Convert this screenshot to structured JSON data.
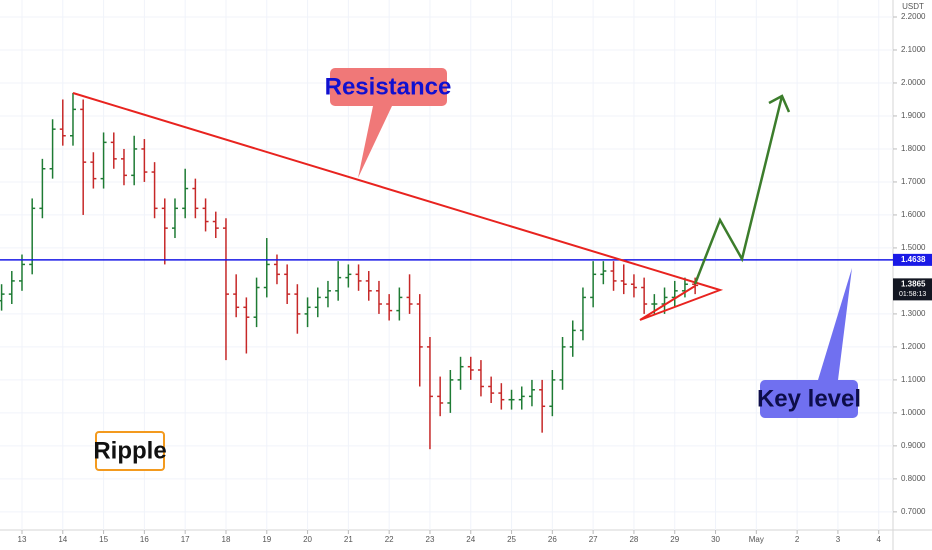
{
  "chart_data": {
    "type": "ohlc",
    "y_axis_label": "USDT",
    "x": [
      -0.5,
      -0.25,
      0,
      0.25,
      0.5,
      0.75,
      1,
      1.25,
      1.5,
      1.75,
      2,
      2.25,
      2.5,
      2.75,
      3,
      3.25,
      3.5,
      3.75,
      4,
      4.25,
      4.5,
      4.75,
      5,
      5.25,
      5.5,
      5.75,
      6,
      6.25,
      6.5,
      6.75,
      7,
      7.25,
      7.5,
      7.75,
      8,
      8.25,
      8.5,
      8.75,
      9,
      9.25,
      9.5,
      9.75,
      10,
      10.25,
      10.5,
      10.75,
      11,
      11.25,
      11.5,
      11.75,
      12,
      12.25,
      12.5,
      12.75,
      13,
      13.25,
      13.5,
      13.75,
      14,
      14.25,
      14.5,
      14.75,
      15,
      15.25,
      15.5,
      15.75,
      16,
      16.25,
      16.5
    ],
    "open": [
      1.34,
      1.36,
      1.4,
      1.45,
      1.62,
      1.74,
      1.86,
      1.84,
      1.92,
      1.76,
      1.71,
      1.82,
      1.77,
      1.72,
      1.8,
      1.73,
      1.62,
      1.56,
      1.62,
      1.68,
      1.62,
      1.58,
      1.56,
      1.36,
      1.32,
      1.29,
      1.38,
      1.45,
      1.42,
      1.36,
      1.3,
      1.32,
      1.35,
      1.37,
      1.41,
      1.42,
      1.4,
      1.37,
      1.33,
      1.31,
      1.35,
      1.33,
      1.2,
      1.05,
      1.03,
      1.1,
      1.14,
      1.13,
      1.08,
      1.06,
      1.04,
      1.04,
      1.05,
      1.07,
      1.02,
      1.1,
      1.2,
      1.25,
      1.35,
      1.42,
      1.43,
      1.4,
      1.39,
      1.38,
      1.33,
      1.33,
      1.35,
      1.37,
      1.39
    ],
    "high": [
      1.39,
      1.43,
      1.48,
      1.65,
      1.77,
      1.89,
      1.95,
      1.97,
      1.95,
      1.79,
      1.85,
      1.85,
      1.8,
      1.84,
      1.83,
      1.76,
      1.65,
      1.65,
      1.74,
      1.71,
      1.65,
      1.61,
      1.59,
      1.42,
      1.35,
      1.41,
      1.53,
      1.48,
      1.45,
      1.39,
      1.35,
      1.38,
      1.4,
      1.46,
      1.45,
      1.45,
      1.43,
      1.4,
      1.36,
      1.38,
      1.42,
      1.36,
      1.23,
      1.11,
      1.13,
      1.17,
      1.17,
      1.16,
      1.11,
      1.09,
      1.07,
      1.08,
      1.1,
      1.1,
      1.13,
      1.23,
      1.28,
      1.38,
      1.46,
      1.46,
      1.46,
      1.45,
      1.42,
      1.41,
      1.36,
      1.38,
      1.4,
      1.41,
      1.41
    ],
    "low": [
      1.31,
      1.33,
      1.37,
      1.42,
      1.59,
      1.71,
      1.81,
      1.81,
      1.6,
      1.68,
      1.68,
      1.74,
      1.69,
      1.69,
      1.7,
      1.59,
      1.45,
      1.53,
      1.59,
      1.59,
      1.55,
      1.53,
      1.16,
      1.29,
      1.18,
      1.26,
      1.35,
      1.39,
      1.33,
      1.24,
      1.26,
      1.29,
      1.32,
      1.34,
      1.38,
      1.37,
      1.34,
      1.3,
      1.28,
      1.28,
      1.3,
      1.08,
      0.89,
      0.99,
      1.0,
      1.07,
      1.1,
      1.05,
      1.03,
      1.01,
      1.01,
      1.01,
      1.02,
      0.94,
      0.99,
      1.07,
      1.17,
      1.22,
      1.32,
      1.39,
      1.37,
      1.36,
      1.35,
      1.3,
      1.3,
      1.3,
      1.32,
      1.35,
      1.36
    ],
    "close": [
      1.36,
      1.4,
      1.45,
      1.62,
      1.74,
      1.86,
      1.84,
      1.92,
      1.76,
      1.71,
      1.82,
      1.77,
      1.72,
      1.8,
      1.73,
      1.62,
      1.56,
      1.62,
      1.68,
      1.62,
      1.58,
      1.56,
      1.36,
      1.32,
      1.29,
      1.38,
      1.45,
      1.42,
      1.36,
      1.3,
      1.32,
      1.35,
      1.37,
      1.41,
      1.42,
      1.4,
      1.37,
      1.33,
      1.31,
      1.35,
      1.33,
      1.2,
      1.05,
      1.03,
      1.1,
      1.14,
      1.13,
      1.08,
      1.06,
      1.04,
      1.04,
      1.05,
      1.07,
      1.02,
      1.1,
      1.2,
      1.25,
      1.35,
      1.42,
      1.43,
      1.4,
      1.39,
      1.38,
      1.33,
      1.33,
      1.35,
      1.37,
      1.39,
      1.3865
    ],
    "up_color": "#1e7b34",
    "down_color": "#c62828",
    "xlim": [
      -0.539,
      21.35
    ],
    "ylim": [
      0.645,
      2.2515
    ],
    "yticks": [
      {
        "value": 2.2,
        "label": "2.2000"
      },
      {
        "value": 2.1,
        "label": "2.1000"
      },
      {
        "value": 2.0,
        "label": "2.0000"
      },
      {
        "value": 1.9,
        "label": "1.9000"
      },
      {
        "value": 1.8,
        "label": "1.8000"
      },
      {
        "value": 1.7,
        "label": "1.7000"
      },
      {
        "value": 1.6,
        "label": "1.6000"
      },
      {
        "value": 1.5,
        "label": "1.5000"
      },
      {
        "value": 1.3,
        "label": "1.3000"
      },
      {
        "value": 1.2,
        "label": "1.2000"
      },
      {
        "value": 1.1,
        "label": "1.1000"
      },
      {
        "value": 1.0,
        "label": "1.0000"
      },
      {
        "value": 0.9,
        "label": "0.9000"
      },
      {
        "value": 0.8,
        "label": "0.8000"
      },
      {
        "value": 0.7,
        "label": "0.7000"
      }
    ],
    "xticks": [
      {
        "value": 0,
        "label": "13"
      },
      {
        "value": 1,
        "label": "14"
      },
      {
        "value": 2,
        "label": "15"
      },
      {
        "value": 3,
        "label": "16"
      },
      {
        "value": 4,
        "label": "17"
      },
      {
        "value": 5,
        "label": "18"
      },
      {
        "value": 6,
        "label": "19"
      },
      {
        "value": 7,
        "label": "20"
      },
      {
        "value": 8,
        "label": "21"
      },
      {
        "value": 9,
        "label": "22"
      },
      {
        "value": 10,
        "label": "23"
      },
      {
        "value": 11,
        "label": "24"
      },
      {
        "value": 12,
        "label": "25"
      },
      {
        "value": 13,
        "label": "26"
      },
      {
        "value": 14,
        "label": "27"
      },
      {
        "value": 15,
        "label": "28"
      },
      {
        "value": 16,
        "label": "29"
      },
      {
        "value": 17,
        "label": "30"
      },
      {
        "value": 18,
        "label": "May"
      },
      {
        "value": 19,
        "label": "2"
      },
      {
        "value": 20,
        "label": "3"
      },
      {
        "value": 21,
        "label": "4"
      }
    ],
    "key_level": {
      "value": 1.4638,
      "label": "1.4638",
      "color": "#1a1ae6"
    },
    "last_price": 1.3865,
    "countdown": "01:58:13",
    "annotations": {
      "resistance": "Resistance",
      "key_level": "Key level",
      "asset": "Ripple"
    }
  }
}
